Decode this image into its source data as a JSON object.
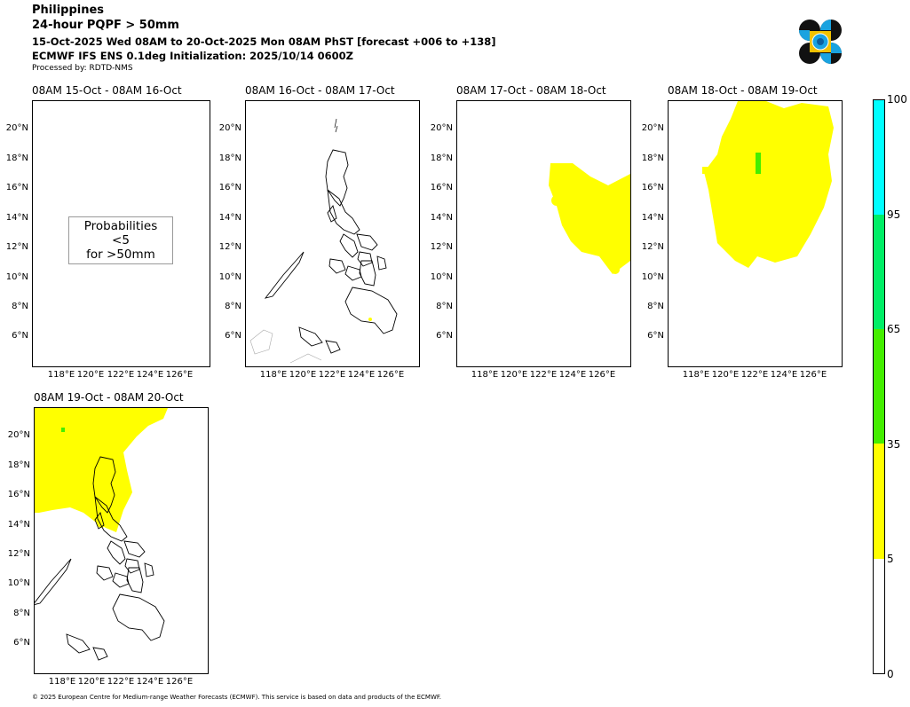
{
  "header": {
    "region": "Philippines",
    "product": "24-hour PQPF > 50mm",
    "period": "15-Oct-2025 Wed 08AM to 20-Oct-2025 Mon 08AM PhST [forecast +006 to +138]",
    "model": "ECMWF IFS ENS 0.1deg Initialization: 2025/10/14 0600Z",
    "processed_by": "Processed by: RDTD-NMS"
  },
  "axes": {
    "lat_ticks": [
      "20°N",
      "18°N",
      "16°N",
      "14°N",
      "12°N",
      "10°N",
      "8°N",
      "6°N"
    ],
    "lon_ticks": [
      "118°E",
      "120°E",
      "122°E",
      "124°E",
      "126°E"
    ]
  },
  "panels": [
    {
      "title": "08AM 15-Oct - 08AM 16-Oct",
      "note_line1": "Probabilities <5",
      "note_line2": "for >50mm"
    },
    {
      "title": "08AM 16-Oct - 08AM 17-Oct"
    },
    {
      "title": "08AM 17-Oct - 08AM 18-Oct"
    },
    {
      "title": "08AM 18-Oct - 08AM 19-Oct"
    },
    {
      "title": "08AM 19-Oct - 08AM 20-Oct"
    }
  ],
  "colorbar": {
    "levels": [
      "0",
      "5",
      "35",
      "65",
      "95",
      "100"
    ],
    "colors": [
      "#ffffff",
      "#ffff00",
      "#44ee00",
      "#00ee66",
      "#00ffff"
    ]
  },
  "footer": "© 2025 European Centre for Medium-range Weather Forecasts (ECMWF). This service is based on data and products of the ECMWF."
}
